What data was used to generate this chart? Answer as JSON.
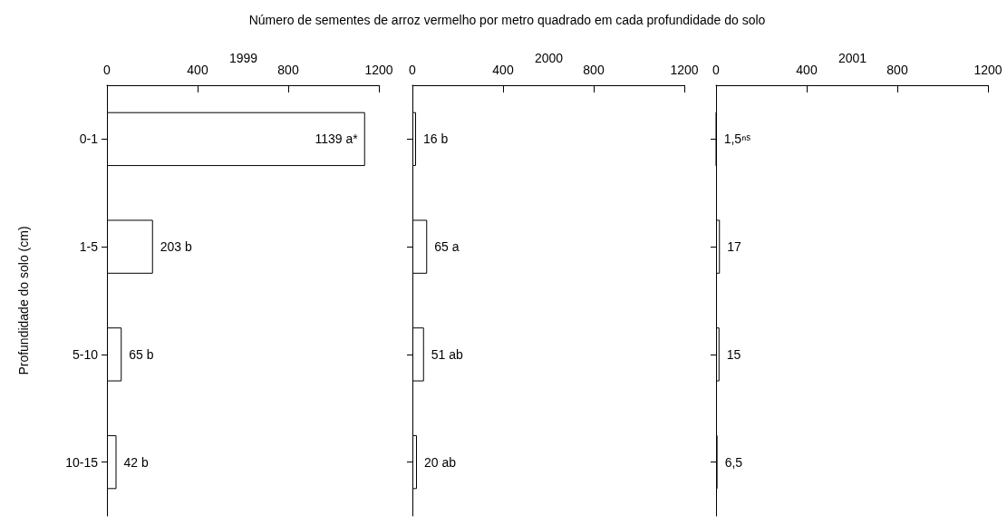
{
  "chart_data": [
    {
      "type": "bar",
      "orientation": "horizontal",
      "title": "Número de sementes de arroz vermelho por metro quadrado em cada profundidade do solo",
      "subtitle": "1999",
      "ylabel": "Profundidade do solo (cm)",
      "categories": [
        "0-1",
        "1-5",
        "5-10",
        "10-15"
      ],
      "values": [
        1139,
        203,
        65,
        42
      ],
      "value_labels": [
        "1139 a*",
        "203 b",
        "65 b",
        "42 b"
      ],
      "color": "#ffffff",
      "xlim": [
        0,
        1200
      ],
      "xticks": [
        0,
        400,
        800,
        1200
      ],
      "grid": false
    },
    {
      "type": "bar",
      "orientation": "horizontal",
      "subtitle": "2000",
      "categories": [
        null,
        null,
        null,
        null
      ],
      "values": [
        16,
        65,
        51,
        20
      ],
      "value_labels": [
        "16 b",
        "65 a",
        "51 ab",
        "20 ab"
      ],
      "color": "#ffffff",
      "xlim": [
        0,
        1200
      ],
      "xticks": [
        0,
        400,
        800,
        1200
      ],
      "grid": false
    },
    {
      "type": "bar",
      "orientation": "horizontal",
      "subtitle": "2001",
      "categories": [
        null,
        null,
        null,
        null
      ],
      "values": [
        1.5,
        17,
        15,
        6.5
      ],
      "value_labels": [
        "1,5ⁿˢ",
        "17",
        "15",
        "6,5"
      ],
      "color": "#ffffff",
      "xlim": [
        0,
        1200
      ],
      "xticks": [
        0,
        400,
        800,
        1200
      ],
      "grid": false
    }
  ]
}
